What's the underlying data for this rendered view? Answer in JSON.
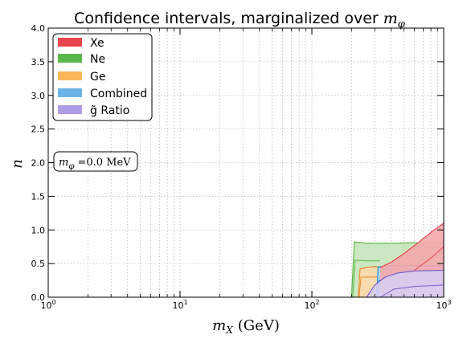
{
  "chart_data": {
    "type": "area",
    "title": "Confidence intervals, marginalized over ",
    "title_math": "m",
    "title_math_sub": "φ",
    "xlabel": "m",
    "xlabel_sub": "X",
    "xlabel_unit": "(GeV)",
    "ylabel": "n",
    "xscale": "log",
    "xlim": [
      1,
      1000
    ],
    "ylim": [
      0.0,
      4.0
    ],
    "x_ticks": [
      {
        "value": 1,
        "base": "10",
        "exp": "0"
      },
      {
        "value": 10,
        "base": "10",
        "exp": "1"
      },
      {
        "value": 100,
        "base": "10",
        "exp": "2"
      },
      {
        "value": 1000,
        "base": "10",
        "exp": "3"
      }
    ],
    "y_ticks": [
      "0.0",
      "0.5",
      "1.0",
      "1.5",
      "2.0",
      "2.5",
      "3.0",
      "3.5",
      "4.0"
    ],
    "grid": true,
    "legend_position": "top-left",
    "legend": [
      {
        "label": "Xe",
        "color": "#e8454f"
      },
      {
        "label": "Ne",
        "color": "#5cb848"
      },
      {
        "label": "Ge",
        "color": "#f8b85a"
      },
      {
        "label": "Combined",
        "color": "#6ab4e8"
      },
      {
        "label": "g̃ Ratio",
        "color": "#b09ce4"
      }
    ],
    "annotation": {
      "text_math": "m",
      "text_sub": "φ",
      "text_rest": " =0.0 MeV"
    },
    "series": [
      {
        "name": "Ne",
        "color": "#5cb848",
        "fill": "#c5e6bb",
        "upper": [
          [
            200,
            0.0
          ],
          [
            210,
            0.82
          ],
          [
            260,
            0.8
          ],
          [
            400,
            0.8
          ],
          [
            600,
            0.81
          ],
          [
            1000,
            0.81
          ]
        ],
        "lower": [
          [
            1000,
            0.0
          ],
          [
            200,
            0.0
          ]
        ],
        "inner": [
          [
            204,
            0.0
          ],
          [
            213,
            0.55
          ],
          [
            260,
            0.54
          ],
          [
            330,
            0.54
          ]
        ]
      },
      {
        "name": "Ge",
        "color": "#f08a30",
        "fill": "#fbd9ad",
        "upper": [
          [
            225,
            0.0
          ],
          [
            232,
            0.42
          ],
          [
            260,
            0.44
          ],
          [
            300,
            0.46
          ],
          [
            360,
            0.42
          ]
        ],
        "lower": [
          [
            360,
            0.0
          ],
          [
            225,
            0.0
          ]
        ],
        "inner": [
          [
            228,
            0.0
          ],
          [
            236,
            0.3
          ],
          [
            300,
            0.3
          ],
          [
            340,
            0.3
          ]
        ]
      },
      {
        "name": "Combined",
        "color": "#2e8fd6",
        "fill": "#a9d6f3",
        "upper": [
          [
            310,
            0.0
          ],
          [
            318,
            0.45
          ],
          [
            400,
            0.47
          ],
          [
            600,
            0.47
          ],
          [
            1000,
            0.47
          ]
        ],
        "lower": [
          [
            1000,
            0.0
          ],
          [
            310,
            0.0
          ]
        ],
        "inner": [
          [
            315,
            0.0
          ],
          [
            322,
            0.25
          ],
          [
            600,
            0.26
          ],
          [
            1000,
            0.26
          ]
        ]
      },
      {
        "name": "Xe",
        "color": "#e8454f",
        "fill": "#f4a8ab",
        "upper": [
          [
            330,
            0.44
          ],
          [
            400,
            0.52
          ],
          [
            500,
            0.65
          ],
          [
            650,
            0.82
          ],
          [
            820,
            0.98
          ],
          [
            1000,
            1.1
          ]
        ],
        "lower": [
          [
            1000,
            0.0
          ],
          [
            330,
            0.0
          ]
        ],
        "inner": [
          [
            450,
            0.25
          ],
          [
            600,
            0.4
          ],
          [
            800,
            0.58
          ],
          [
            1000,
            0.75
          ]
        ]
      },
      {
        "name": "g̃ Ratio",
        "color": "#7a5fc8",
        "fill": "#d8cdf2",
        "upper": [
          [
            260,
            0.0
          ],
          [
            300,
            0.18
          ],
          [
            360,
            0.3
          ],
          [
            450,
            0.36
          ],
          [
            600,
            0.39
          ],
          [
            1000,
            0.4
          ]
        ],
        "lower": [
          [
            1000,
            0.0
          ],
          [
            260,
            0.0
          ]
        ],
        "inner": [
          [
            330,
            0.0
          ],
          [
            420,
            0.12
          ],
          [
            600,
            0.16
          ],
          [
            1000,
            0.18
          ]
        ]
      }
    ]
  }
}
